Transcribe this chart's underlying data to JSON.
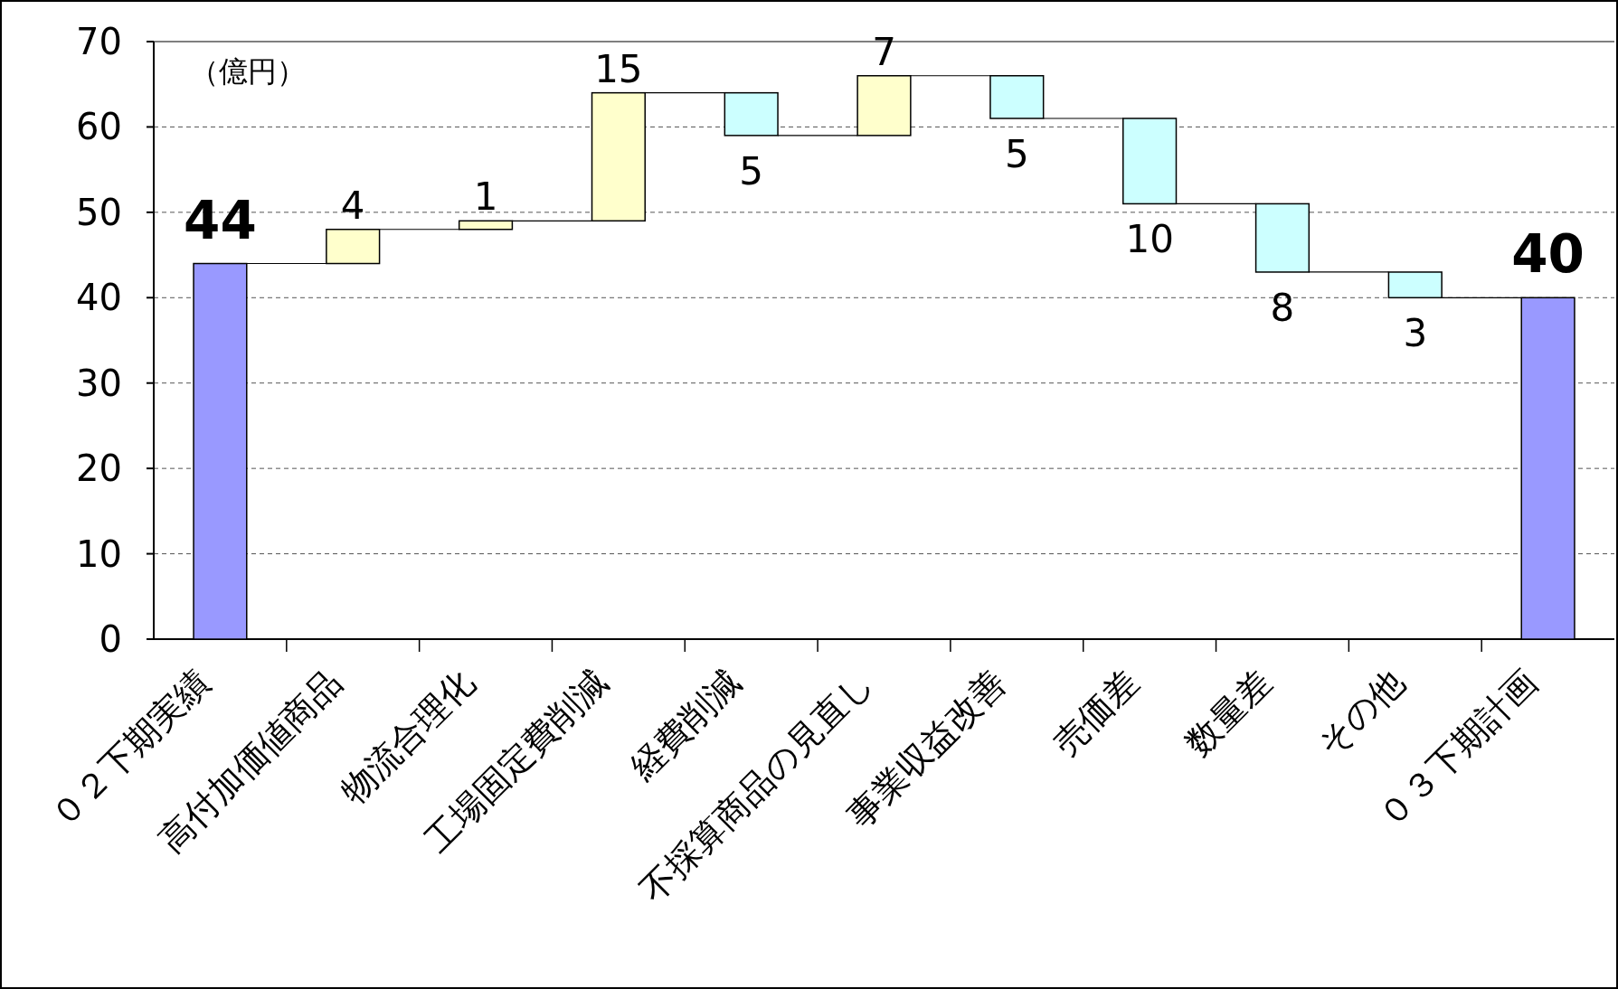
{
  "chart_data": {
    "type": "bar",
    "categories": [
      "０２下期実績",
      "高付加価値商品",
      "物流合理化",
      "工場固定費削減",
      "経費削減",
      "不採算商品の見直し",
      "事業収益改善",
      "売価差",
      "数量差",
      "その他",
      "０３下期計画"
    ],
    "values": [
      44,
      4,
      1,
      15,
      -5,
      7,
      -5,
      -10,
      -8,
      -3,
      40
    ],
    "base": [
      0,
      44,
      48,
      49,
      64,
      59,
      66,
      61,
      51,
      43,
      0
    ],
    "colors": [
      "#9999ff",
      "#ffffcc",
      "#ffffcc",
      "#ffffcc",
      "#ccffff",
      "#ffffcc",
      "#ccffff",
      "#ccffff",
      "#ccffff",
      "#ccffff",
      "#9999ff"
    ],
    "value_labels": [
      "44",
      "4",
      "1",
      "15",
      "5",
      "7",
      "5",
      "10",
      "8",
      "3",
      "40"
    ],
    "ylim": [
      0,
      70
    ],
    "yticks": [
      0,
      10,
      20,
      30,
      40,
      50,
      60,
      70
    ],
    "grid": "y",
    "annotations": [
      "（億円）"
    ]
  }
}
